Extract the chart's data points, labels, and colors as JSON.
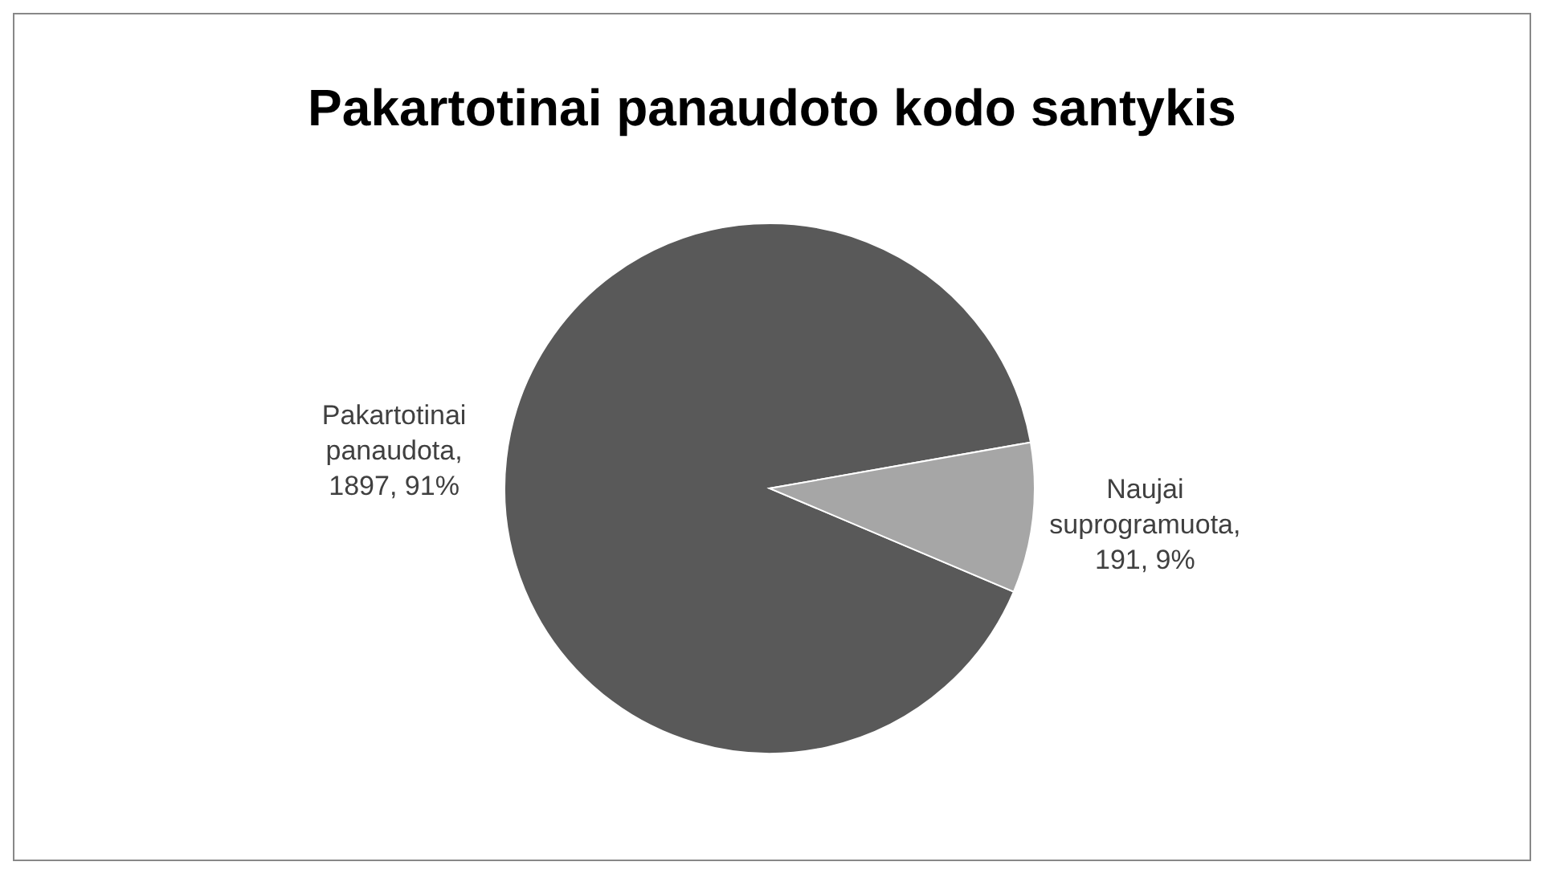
{
  "chart_data": {
    "type": "pie",
    "title": "Pakartotinai panaudoto kodo santykis",
    "categories": [
      "Pakartotinai panaudota",
      "Naujai suprogramuota"
    ],
    "values": [
      1897,
      191
    ],
    "value_labels": [
      ", 1897, 91%",
      ", 191, 9%"
    ],
    "colors": [
      "#595959",
      "#a6a6a6"
    ],
    "legend": false
  }
}
